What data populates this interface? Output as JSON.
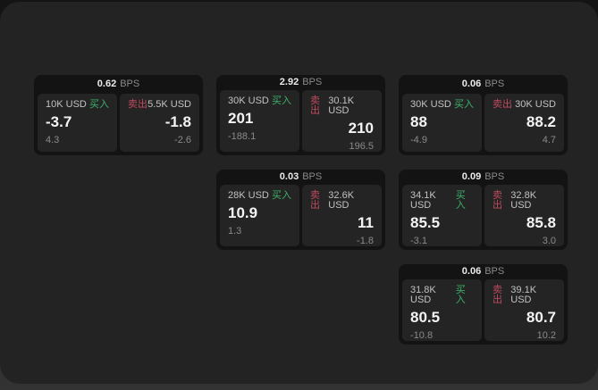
{
  "colors": {
    "buy_green": "#3cb269",
    "sell_red": "#bf4a5e",
    "window_bg": "#232323",
    "card_shell_bg": "#131313",
    "panel_bg": "#242424"
  },
  "labels": {
    "bps_unit": "BPS",
    "buy_tag": "买入",
    "sell_tag": "卖出"
  },
  "cards": [
    {
      "col": 0,
      "row": 0,
      "bps_value": "0.62",
      "bps_unit": "BPS",
      "buy": {
        "amount": "10K USD",
        "tag": "买入",
        "value": "-3.7",
        "sub": "4.3"
      },
      "sell": {
        "tag": "卖出",
        "amount": "5.5K USD",
        "value": "-1.8",
        "sub": "-2.6"
      }
    },
    {
      "col": 1,
      "row": 0,
      "bps_value": "2.92",
      "bps_unit": "BPS",
      "buy": {
        "amount": "30K USD",
        "tag": "买入",
        "value": "201",
        "sub": "-188.1"
      },
      "sell": {
        "tag": "卖出",
        "amount": "30.1K USD",
        "value": "210",
        "sub": "196.5"
      }
    },
    {
      "col": 2,
      "row": 0,
      "bps_value": "0.06",
      "bps_unit": "BPS",
      "buy": {
        "amount": "30K USD",
        "tag": "买入",
        "value": "88",
        "sub": "-4.9"
      },
      "sell": {
        "tag": "卖出",
        "amount": "30K USD",
        "value": "88.2",
        "sub": "4.7"
      }
    },
    {
      "col": 1,
      "row": 1,
      "bps_value": "0.03",
      "bps_unit": "BPS",
      "buy": {
        "amount": "28K USD",
        "tag": "买入",
        "value": "10.9",
        "sub": "1.3"
      },
      "sell": {
        "tag": "卖出",
        "amount": "32.6K USD",
        "value": "11",
        "sub": "-1.8"
      }
    },
    {
      "col": 2,
      "row": 1,
      "bps_value": "0.09",
      "bps_unit": "BPS",
      "buy": {
        "amount": "34.1K USD",
        "tag": "买入",
        "value": "85.5",
        "sub": "-3.1"
      },
      "sell": {
        "tag": "卖出",
        "amount": "32.8K USD",
        "value": "85.8",
        "sub": "3.0"
      }
    },
    {
      "col": 2,
      "row": 2,
      "bps_value": "0.06",
      "bps_unit": "BPS",
      "buy": {
        "amount": "31.8K USD",
        "tag": "买入",
        "value": "80.5",
        "sub": "-10.8"
      },
      "sell": {
        "tag": "卖出",
        "amount": "39.1K USD",
        "value": "80.7",
        "sub": "10.2"
      }
    }
  ]
}
